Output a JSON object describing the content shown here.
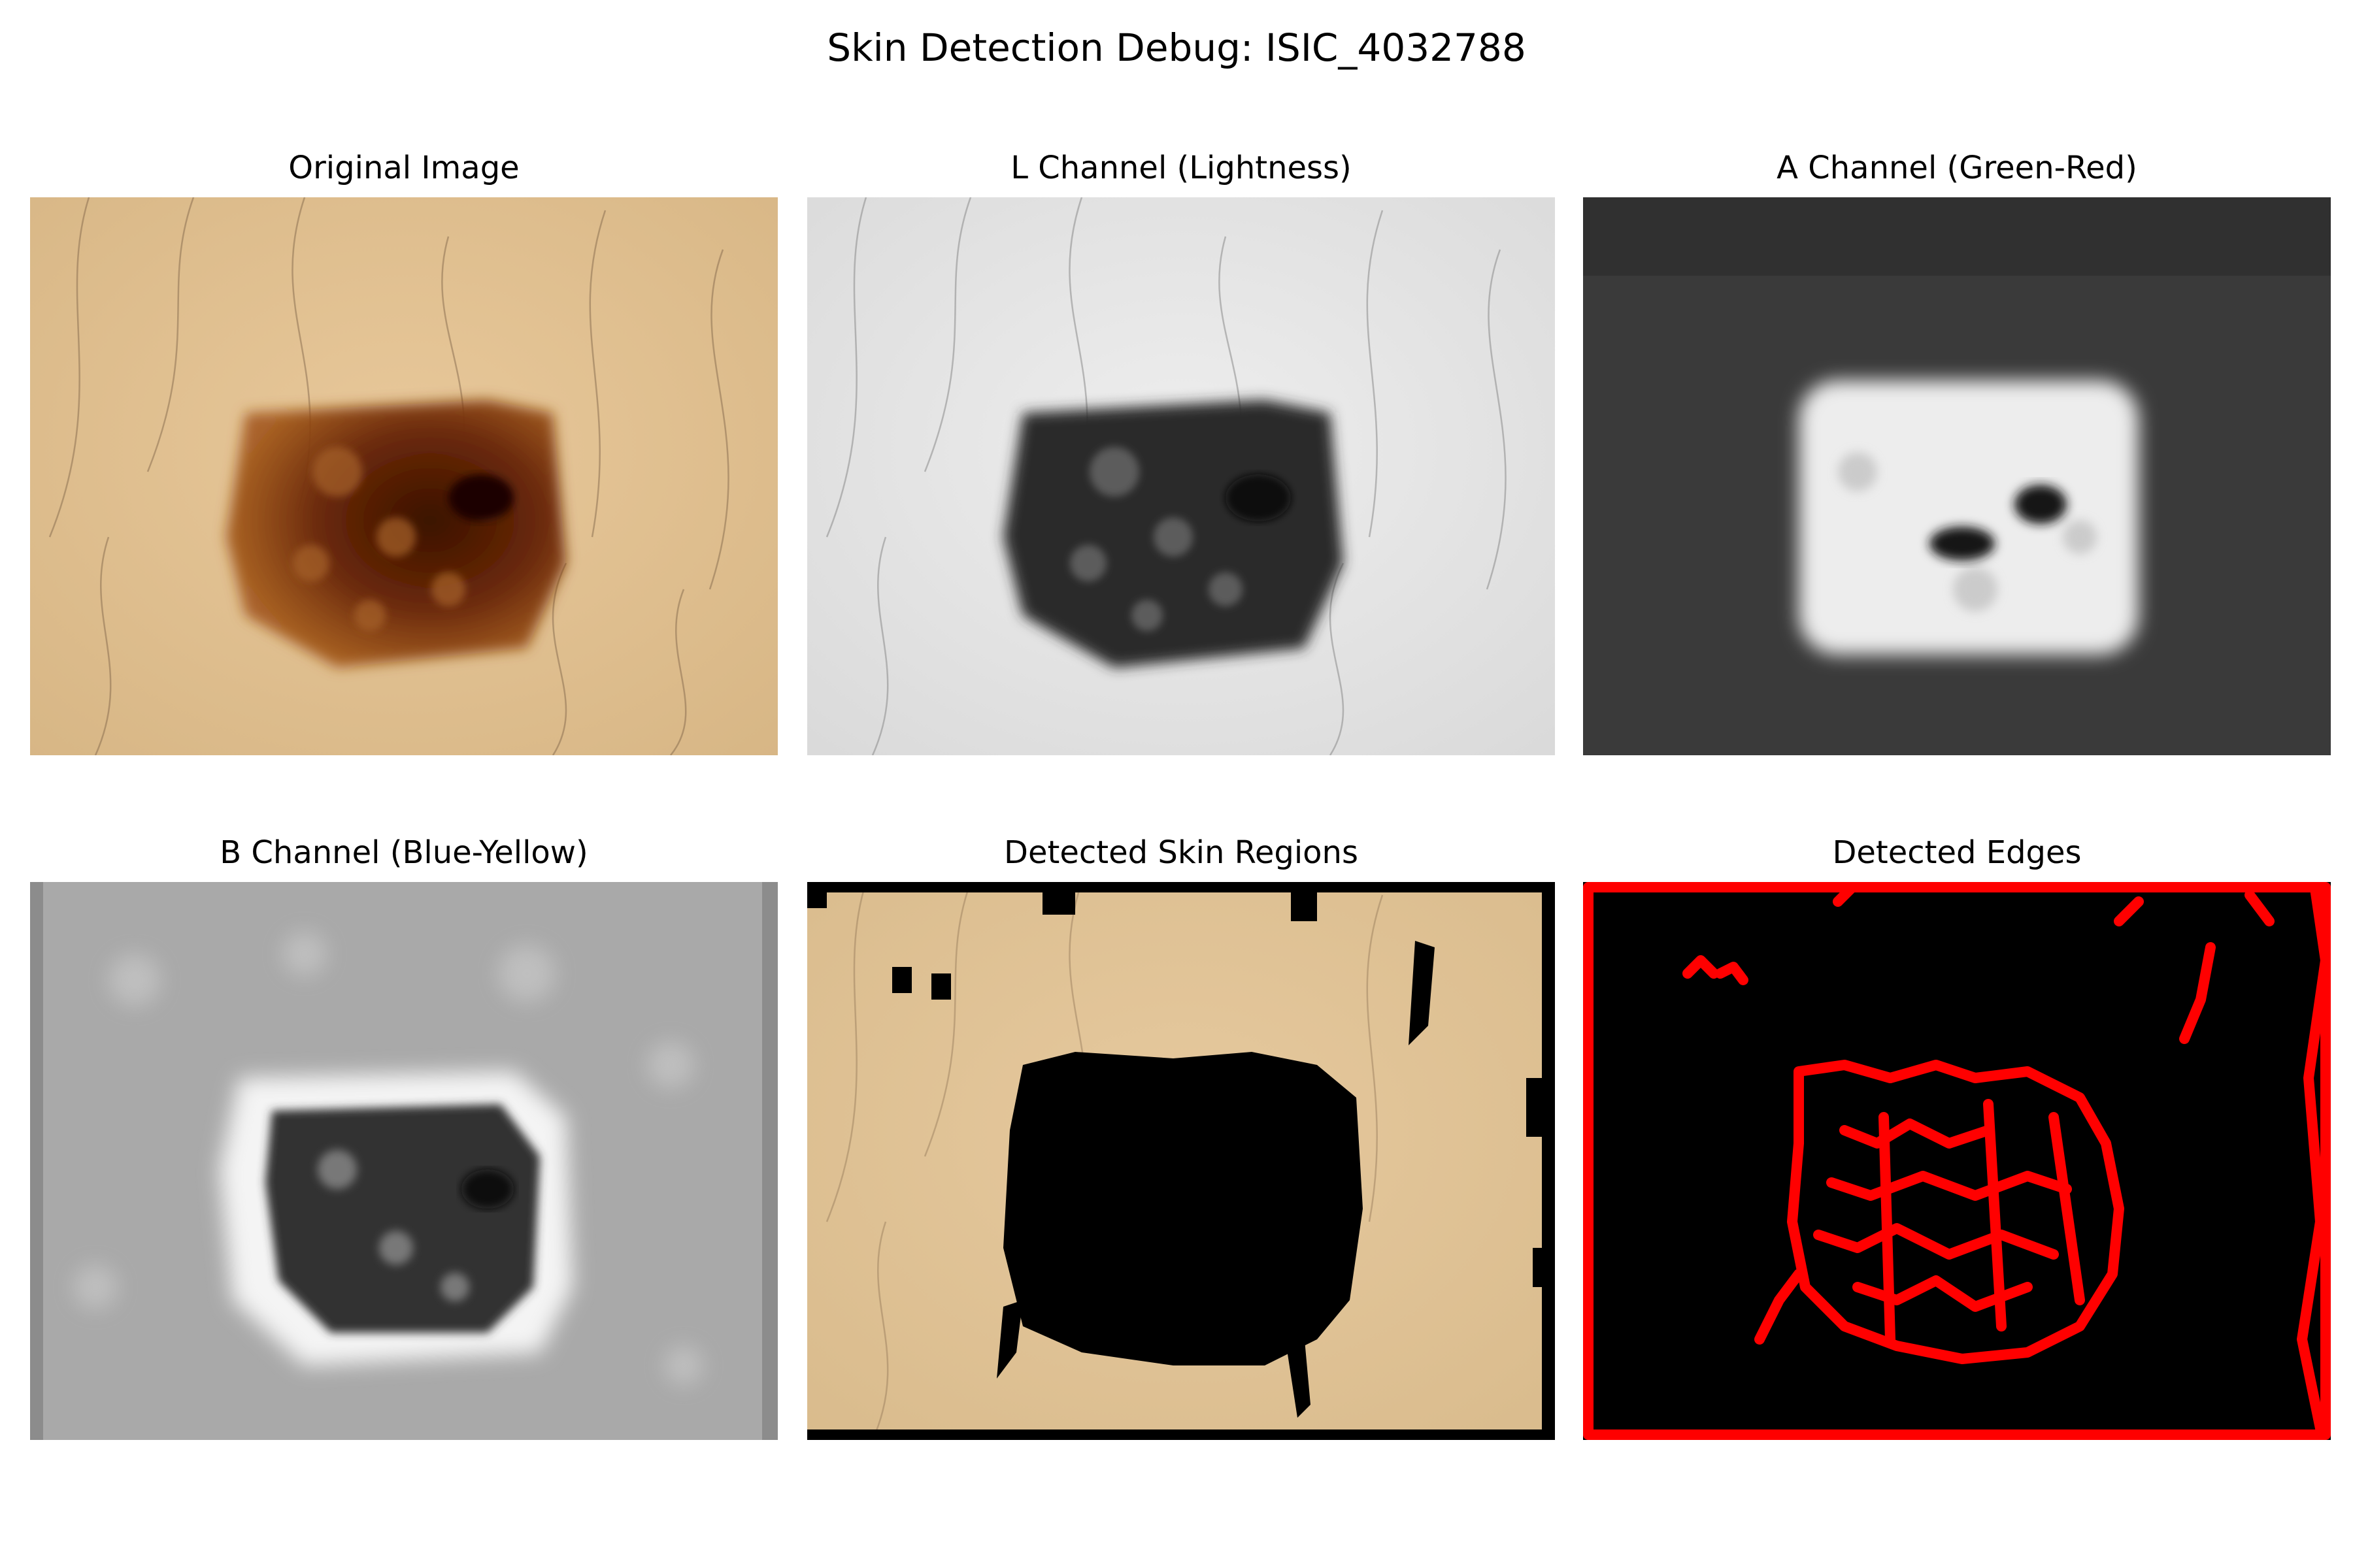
{
  "figure": {
    "title": "Skin Detection Debug: ISIC_4032788"
  },
  "panels": [
    {
      "title": "Original Image",
      "image": "dermoscopy-original-color"
    },
    {
      "title": "L Channel (Lightness)",
      "image": "lab-l-channel-grayscale"
    },
    {
      "title": "A Channel (Green-Red)",
      "image": "lab-a-channel-grayscale"
    },
    {
      "title": "B Channel (Blue-Yellow)",
      "image": "lab-b-channel-grayscale"
    },
    {
      "title": "Detected Skin Regions",
      "image": "skin-mask-overlay"
    },
    {
      "title": "Detected Edges",
      "image": "red-edge-map"
    }
  ],
  "colors": {
    "skin": "#e2c191",
    "lesion": "#6a2a08",
    "edge": "#ff0000",
    "mask": "#000000"
  }
}
